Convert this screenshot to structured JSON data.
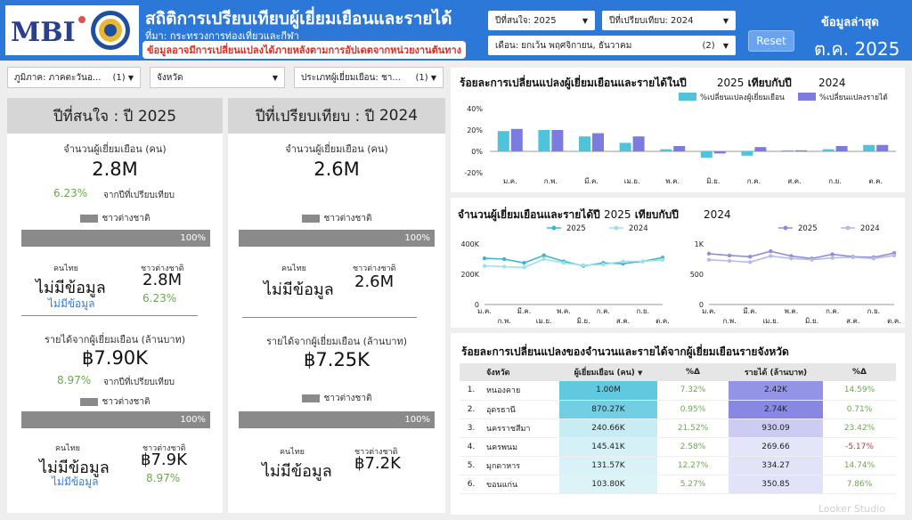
{
  "header": {
    "logo_text": "MBI",
    "title": "สถิติการเปรียบเทียบผู้เยี่ยมเยือนและรายได้",
    "source": "ที่มา: กระทรวงการท่องเที่ยวและกีฬา",
    "notice": "ข้อมูลอาจมีการเปลี่ยนแปลงได้ภายหลังตามการอัปเดตจากหน่วยงานต้นทาง",
    "year_of_interest": "ปีที่สนใจ: 2025",
    "compare_year": "ปีที่เปรียบเทียบ: 2024",
    "month_filter": "เดือน: ยกเว้น พฤศจิกายน, ธันวาคม",
    "month_filter_count": "(2)",
    "reset_label": "Reset",
    "latest_label": "ข้อมูลล่าสุด",
    "latest_value": "ต.ค. 2025"
  },
  "filters": {
    "region": "ภูมิภาค: ภาคตะวันอ...",
    "region_count": "(1)",
    "province": "จังหวัด",
    "visitor_type": "ประเภทผู้เยี่ยมเยือน: ชา...",
    "visitor_type_count": "(1)"
  },
  "kpi_left": {
    "header": "ปีที่สนใจ : ปี 2025",
    "visitors_label": "จำนวนผู้เยี่ยมเยือน (คน)",
    "visitors_value": "2.8M",
    "visitors_change": "6.23%",
    "from_compare": "จากปีที่เปรียบเทียบ",
    "legend_foreign": "ชาวต่างชาติ",
    "bar_pct": "100%",
    "thai_label": "คนไทย",
    "foreign_label": "ชาวต่างชาติ",
    "no_data": "ไม่มีข้อมูล",
    "no_data_small": "ไม่มีข้อมูล",
    "foreign_visitors": "2.8M",
    "foreign_visitors_change": "6.23%",
    "revenue_label": "รายได้จากผู้เยี่ยมเยือน (ล้านบาท)",
    "revenue_value": "฿7.90K",
    "revenue_change": "8.97%",
    "rev_from_compare": "จากปีที่เปรียบเทียบ",
    "rev_legend_foreign": "ชาวต่างชาติ",
    "rev_bar_pct": "100%",
    "rev_thai_label": "คนไทย",
    "rev_foreign_label": "ชาวต่างชาติ",
    "rev_no_data": "ไม่มีข้อมูล",
    "rev_no_data_small": "ไม่มีข้อมูล",
    "foreign_revenue": "฿7.9K",
    "foreign_revenue_change": "8.97%"
  },
  "kpi_right": {
    "header_prefix": "ปีที่เปรียบเทียบ : ปี",
    "header_year": "2024",
    "visitors_label": "จำนวนผู้เยี่ยมเยือน (คน)",
    "visitors_value": "2.6M",
    "legend_foreign": "ชาวต่างชาติ",
    "bar_pct": "100%",
    "thai_label": "คนไทย",
    "foreign_label": "ชาวต่างชาติ",
    "no_data": "ไม่มีข้อมูล",
    "foreign_visitors": "2.6M",
    "revenue_label": "รายได้จากผู้เยี่ยมเยือน (ล้านบาท)",
    "revenue_value": "฿7.25K",
    "rev_legend_foreign": "ชาวต่างชาติ",
    "rev_bar_pct": "100%",
    "rev_thai_label": "คนไทย",
    "rev_foreign_label": "ชาวต่างชาติ",
    "rev_no_data": "ไม่มีข้อมูล",
    "foreign_revenue": "฿7.2K"
  },
  "card1": {
    "title": "ร้อยละการเปลี่ยนแปลงผู้เยี่ยมเยือนและรายได้ในปี",
    "year_a": "2025",
    "title_mid": "เทียบกับปี",
    "year_b": "2024"
  },
  "card2": {
    "title": "จำนวนผู้เยี่ยมเยือนและรายได้ปี",
    "year_a": "2025",
    "title_mid": "เทียบกับปี",
    "year_b": "2024"
  },
  "card3": {
    "title": "ร้อยละการเปลี่ยนแปลงของจำนวนและรายได้จากผู้เยี่ยมเยือนรายจังหวัด"
  },
  "colors": {
    "cyan": "#4fc3dc",
    "purple": "#7b7be0",
    "lightcyan": "#9fe0ec",
    "lightpurple": "#b9b9ec"
  },
  "chart_data": [
    {
      "type": "bar",
      "categories": [
        "ม.ค.",
        "ก.พ.",
        "มี.ค.",
        "เม.ย.",
        "พ.ค.",
        "มิ.ย.",
        "ก.ค.",
        "ส.ค.",
        "ก.ย.",
        "ต.ค."
      ],
      "series": [
        {
          "name": "%เปลี่ยนแปลงผู้เยี่ยมเยือน",
          "values": [
            19,
            20,
            14,
            8,
            2,
            -6,
            -4,
            1,
            2,
            6
          ]
        },
        {
          "name": "%เปลี่ยนแปลงรายได้",
          "values": [
            21,
            20,
            17,
            14,
            5,
            -2,
            4,
            1,
            5,
            6
          ]
        }
      ],
      "yticks": [
        "40%",
        "20%",
        "0%",
        "-20%"
      ],
      "ylim": [
        -20,
        40
      ]
    },
    {
      "type": "line",
      "categories": [
        "ม.ค.",
        "ก.พ.",
        "มี.ค.",
        "เม.ย.",
        "พ.ค.",
        "มิ.ย.",
        "ก.ค.",
        "ส.ค.",
        "ก.ย.",
        "ต.ค."
      ],
      "xticks_top": [
        "ม.ค.",
        "มี.ค.",
        "พ.ค.",
        "ก.ค.",
        "ก.ย."
      ],
      "xticks_bottom": [
        "ก.พ.",
        "เม.ย.",
        "มิ.ย.",
        "ส.ค.",
        "ต.ค."
      ],
      "series": [
        {
          "name": "2025",
          "values": [
            305000,
            300000,
            275000,
            325000,
            285000,
            255000,
            275000,
            270000,
            285000,
            310000
          ]
        },
        {
          "name": "2024",
          "values": [
            255000,
            250000,
            245000,
            300000,
            275000,
            260000,
            265000,
            285000,
            285000,
            295000
          ]
        }
      ],
      "yticks": [
        "400K",
        "200K",
        "0"
      ],
      "ylim": [
        0,
        400000
      ]
    },
    {
      "type": "line",
      "categories": [
        "ม.ค.",
        "ก.พ.",
        "มี.ค.",
        "เม.ย.",
        "พ.ค.",
        "มิ.ย.",
        "ก.ค.",
        "ส.ค.",
        "ก.ย.",
        "ต.ค."
      ],
      "xticks_top": [
        "ม.ค.",
        "มี.ค.",
        "พ.ค.",
        "ก.ค.",
        "ก.ย."
      ],
      "xticks_bottom": [
        "ก.พ.",
        "เม.ย.",
        "มิ.ย.",
        "ส.ค.",
        "ต.ค."
      ],
      "series": [
        {
          "name": "2025",
          "values": [
            840,
            810,
            790,
            880,
            800,
            760,
            830,
            790,
            780,
            850
          ]
        },
        {
          "name": "2024",
          "values": [
            740,
            720,
            700,
            800,
            760,
            740,
            770,
            780,
            760,
            810
          ]
        }
      ],
      "yticks": [
        "1K",
        "500",
        "0"
      ],
      "ylim": [
        0,
        1000
      ]
    }
  ],
  "table": {
    "headers": [
      "จังหวัด",
      "ผู้เยี่ยมเยือน (คน)",
      "%Δ",
      "รายได้ (ล้านบาท)",
      "%Δ"
    ],
    "rows": [
      {
        "rank": "1.",
        "province": "หนองคาย",
        "visitors": "1.00M",
        "v_pct": "7.32%",
        "revenue": "2.42K",
        "r_pct": "14.59%",
        "v_shade": 1.0,
        "r_shade": 0.88,
        "r_neg": false
      },
      {
        "rank": "2.",
        "province": "อุดรธานี",
        "visitors": "870.27K",
        "v_pct": "0.95%",
        "revenue": "2.74K",
        "r_pct": "0.71%",
        "v_shade": 0.87,
        "r_shade": 1.0,
        "r_neg": false
      },
      {
        "rank": "3.",
        "province": "นครราชสีมา",
        "visitors": "240.66K",
        "v_pct": "21.52%",
        "revenue": "930.09",
        "r_pct": "23.42%",
        "v_shade": 0.24,
        "r_shade": 0.34,
        "r_neg": false
      },
      {
        "rank": "4.",
        "province": "นครพนม",
        "visitors": "145.41K",
        "v_pct": "2.58%",
        "revenue": "269.66",
        "r_pct": "-5.17%",
        "v_shade": 0.15,
        "r_shade": 0.1,
        "r_neg": true
      },
      {
        "rank": "5.",
        "province": "มุกดาหาร",
        "visitors": "131.57K",
        "v_pct": "12.27%",
        "revenue": "334.27",
        "r_pct": "14.74%",
        "v_shade": 0.13,
        "r_shade": 0.12,
        "r_neg": false
      },
      {
        "rank": "6.",
        "province": "ขอนแก่น",
        "visitors": "103.80K",
        "v_pct": "5.27%",
        "revenue": "350.85",
        "r_pct": "7.86%",
        "v_shade": 0.1,
        "r_shade": 0.13,
        "r_neg": false
      }
    ],
    "sort_icon": "sort-desc-icon"
  },
  "watermark": "Looker Studio"
}
